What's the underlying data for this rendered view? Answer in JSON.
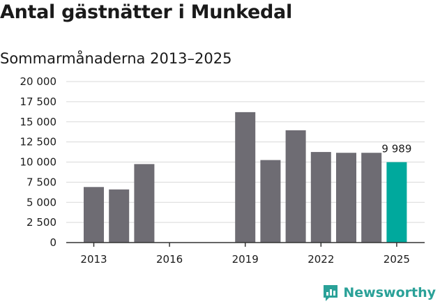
{
  "title": "Antal gästnätter i Munkedal",
  "subtitle": "Sommarmånaderna 2013–2025",
  "brand": "Newsworthy",
  "colors": {
    "bar": "#6e6c73",
    "highlight": "#00a99d",
    "grid": "#d9d9d9",
    "axis": "#333333",
    "brand": "#2aa198"
  },
  "chart_data": {
    "type": "bar",
    "categories": [
      "2013",
      "2014",
      "2015",
      "2016",
      "2017",
      "2018",
      "2019",
      "2020",
      "2021",
      "2022",
      "2023",
      "2024",
      "2025"
    ],
    "values": [
      6900,
      6600,
      9750,
      null,
      null,
      null,
      16200,
      10250,
      13950,
      11250,
      11150,
      11150,
      9989
    ],
    "highlight_index": 12,
    "data_labels": [
      {
        "index": 12,
        "text": "9 989"
      }
    ],
    "x_tick_labels": [
      "2013",
      "2016",
      "2019",
      "2022",
      "2025"
    ],
    "y_tick_labels": [
      "0",
      "2 500",
      "5 000",
      "7 500",
      "10 000",
      "12 500",
      "15 000",
      "17 500",
      "20 000"
    ],
    "y_ticks": [
      0,
      2500,
      5000,
      7500,
      10000,
      12500,
      15000,
      17500,
      20000
    ],
    "ylim": [
      0,
      20000
    ],
    "grid": true
  }
}
